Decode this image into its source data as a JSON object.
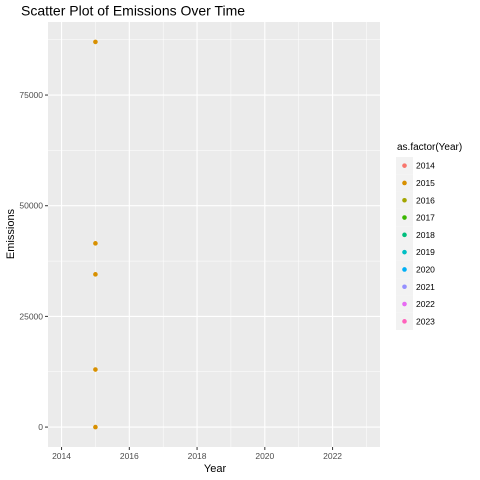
{
  "chart_data": {
    "type": "scatter",
    "title": "Scatter Plot of Emissions Over Time",
    "xlabel": "Year",
    "ylabel": "Emissions",
    "xlim": [
      2013.6,
      2023.4
    ],
    "ylim": [
      -4500,
      91500
    ],
    "x_ticks": [
      2014,
      2016,
      2018,
      2020,
      2022
    ],
    "y_ticks": [
      0,
      25000,
      50000,
      75000
    ],
    "y_tick_labels": [
      "0",
      "25000",
      "50000",
      "75000"
    ],
    "grid": true,
    "legend": {
      "title": "as.factor(Year)",
      "placement": "right",
      "entries": [
        {
          "label": "2014",
          "color": "#F8766D"
        },
        {
          "label": "2015",
          "color": "#D89000"
        },
        {
          "label": "2016",
          "color": "#A3A500"
        },
        {
          "label": "2017",
          "color": "#39B600"
        },
        {
          "label": "2018",
          "color": "#00BF7D"
        },
        {
          "label": "2019",
          "color": "#00BFC4"
        },
        {
          "label": "2020",
          "color": "#00B0F6"
        },
        {
          "label": "2021",
          "color": "#9590FF"
        },
        {
          "label": "2022",
          "color": "#E76BF3"
        },
        {
          "label": "2023",
          "color": "#FF62BC"
        }
      ]
    },
    "points": [
      {
        "x": 2015,
        "y": 87000,
        "group": "2015"
      },
      {
        "x": 2015,
        "y": 41500,
        "group": "2015"
      },
      {
        "x": 2015,
        "y": 34500,
        "group": "2015"
      },
      {
        "x": 2015,
        "y": 13000,
        "group": "2015"
      },
      {
        "x": 2015,
        "y": 0,
        "group": "2015"
      }
    ],
    "panel_background": "#EBEBEB",
    "grid_color": "#FFFFFF"
  }
}
